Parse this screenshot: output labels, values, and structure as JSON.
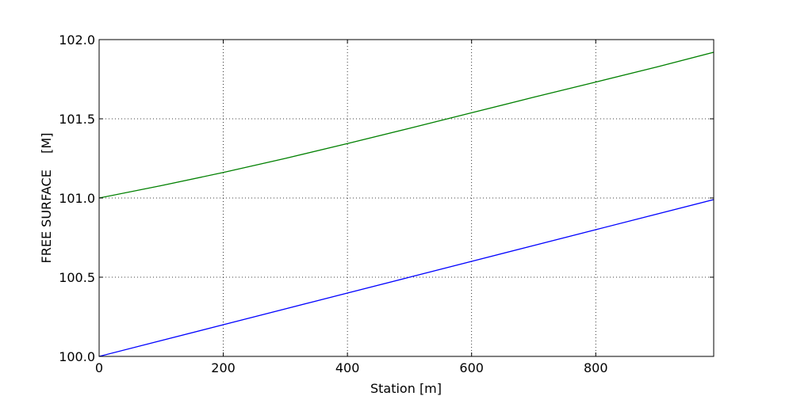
{
  "chart_data": {
    "type": "line",
    "title": "",
    "xlabel": "Station [m]",
    "ylabel": "FREE SURFACE    [M]",
    "xlim": [
      0,
      990
    ],
    "ylim": [
      100.0,
      102.0
    ],
    "x_ticks": [
      0,
      200,
      400,
      600,
      800
    ],
    "x_tick_labels": [
      "0",
      "200",
      "400",
      "600",
      "800"
    ],
    "y_ticks": [
      100.0,
      100.5,
      101.0,
      101.5,
      102.0
    ],
    "y_tick_labels": [
      "100.0",
      "100.5",
      "101.0",
      "101.5",
      "102.0"
    ],
    "grid": true,
    "legend": "none",
    "x": [
      0,
      100,
      200,
      300,
      400,
      500,
      600,
      700,
      800,
      900,
      990
    ],
    "series": [
      {
        "color": "#0000ff",
        "values": [
          100.0,
          100.1,
          100.2,
          100.3,
          100.4,
          100.5,
          100.6,
          100.7,
          100.8,
          100.9,
          100.99
        ]
      },
      {
        "color": "#008000",
        "values": [
          101.0,
          101.078,
          101.161,
          101.25,
          101.344,
          101.44,
          101.538,
          101.636,
          101.732,
          101.829,
          101.92
        ]
      }
    ]
  }
}
